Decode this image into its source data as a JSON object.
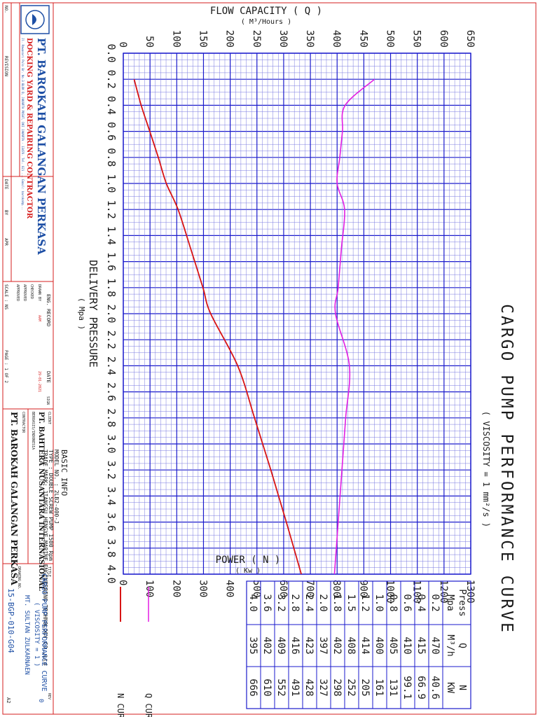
{
  "chart_data": {
    "type": "line",
    "title": "CARGO PUMP PERFORMANCE CURVE",
    "subtitle": "( VISCOSITY = 1 mm²/s )",
    "xlabel": "DELIVERY PRESSURE",
    "xunit": "( Mpa )",
    "x_ticks": [
      "0.0",
      "0.2",
      "0.4",
      "0.6",
      "0.8",
      "1.0",
      "1.2",
      "1.4",
      "1.6",
      "1.8",
      "2.0",
      "2.2",
      "2.4",
      "2.6",
      "2.8",
      "3.0",
      "3.2",
      "3.4",
      "3.6",
      "3.8",
      "4.0"
    ],
    "xlim": [
      0,
      4
    ],
    "y_left_label": "FLOW CAPACITY ( Q )",
    "y_left_unit": "( M³/Hours )",
    "y_left_ticks": [
      "0",
      "50",
      "100",
      "150",
      "200",
      "250",
      "300",
      "350",
      "400",
      "450",
      "500",
      "550",
      "600",
      "650"
    ],
    "y_left_lim": [
      0,
      650
    ],
    "y_right_label": "POWER ( N )",
    "y_right_unit": "( Kw )",
    "y_right_ticks": [
      "0",
      "100",
      "200",
      "300",
      "400",
      "500",
      "600",
      "700",
      "800",
      "900",
      "1000",
      "1100",
      "1200",
      "1300"
    ],
    "y_right_lim": [
      0,
      1300
    ],
    "grid": true,
    "series": [
      {
        "name": "Q CURVE",
        "axis": "left",
        "color": "#e21ee2",
        "x": [
          0.2,
          0.4,
          0.6,
          0.8,
          1.0,
          1.2,
          1.5,
          1.8,
          2.0,
          2.4,
          2.8,
          3.2,
          3.6,
          4.0
        ],
        "y": [
          470,
          415,
          410,
          405,
          400,
          414,
          408,
          402,
          397,
          423,
          416,
          409,
          402,
          395
        ]
      },
      {
        "name": "N CURVE",
        "axis": "right",
        "color": "#d81414",
        "x": [
          0.2,
          0.4,
          0.6,
          0.8,
          1.0,
          1.2,
          1.5,
          1.8,
          2.0,
          2.4,
          2.8,
          3.2,
          3.6,
          4.0
        ],
        "y": [
          40.6,
          66.9,
          99.1,
          131,
          161,
          205,
          252,
          298,
          327,
          428,
          491,
          552,
          610,
          666
        ]
      }
    ],
    "table": {
      "headers": [
        [
          "Press",
          "Mpa"
        ],
        [
          "Q",
          "M³/h"
        ],
        [
          "N",
          "KW"
        ]
      ],
      "rows": [
        [
          "0.2",
          "470",
          "40.6"
        ],
        [
          "0.4",
          "415",
          "66.9"
        ],
        [
          "0.6",
          "410",
          "99.1"
        ],
        [
          "0.8",
          "405",
          "131"
        ],
        [
          "1.0",
          "400",
          "161"
        ],
        [
          "1.2",
          "414",
          "205"
        ],
        [
          "1.5",
          "408",
          "252"
        ],
        [
          "1.8",
          "402",
          "298"
        ],
        [
          "2.0",
          "397",
          "327"
        ],
        [
          "2.4",
          "423",
          "428"
        ],
        [
          "2.8",
          "416",
          "491"
        ],
        [
          "3.2",
          "409",
          "552"
        ],
        [
          "3.6",
          "402",
          "610"
        ],
        [
          "4.0",
          "395",
          "666"
        ]
      ]
    },
    "legend": [
      {
        "label": "Q CURVE",
        "color": "#e21ee2"
      },
      {
        "label": "N CURVE",
        "color": "#d81414"
      }
    ],
    "basic_info": {
      "heading": "BASIC INFO",
      "lines": [
        "MODEL NO. : 2LB2-400-J",
        "TYPE : DOUBLE SCREW PUMP 1500 Rpm",
        "TRADE MARK: JIANGSU HENGYE MARINE ENGINEERING TECHNOLOGY CO.,Ltd"
      ]
    }
  },
  "title_block": {
    "company": "PT. BAROKAH GALANGAN PERKASA",
    "company_sub": "DOCKING YARD & REPAIRING CONTRACTOR",
    "address": "Jl. Rawasari Pulo Br. No.3 BLOK D, JAKARTA PUSAT, DKI JAKARTA - 13470. Tel. 021 ... Email: barokah@...",
    "rev_labels": {
      "no": "NO.",
      "revision": "REVISION",
      "date": "DATE",
      "by": "BY",
      "apr": "APR"
    },
    "eng_record": "ENG. RECORD",
    "date_label": "DATE",
    "sign_label": "SIGN",
    "drawn_by": "DRAWN BY",
    "drawn_by_value": "AAM",
    "checked": "CHECKED",
    "approved": "APPROVED",
    "approved2": "APPROVED",
    "date_value": "29-01-2021",
    "scale": "SCALE : NS",
    "page": "PAGE : 1 OF 2",
    "client_label": "CLIENT",
    "client": "PT. BAHTERA NUSANTARA INTERNASIONAL",
    "client_sub": "BEROASIS/INDONESIA",
    "contractor_label": "CONTRACTOR",
    "contractor": "PT. BAROKAH GALANGAN PERKASA",
    "title_label": "TITLE",
    "drawing_title_1": "CARGO PUMP PERFORMANCE CURVE",
    "drawing_title_2": "( VISCOSITY = 1 )",
    "vessel": "MT. SULTAN ZULKARNAEN",
    "drawing_no_label": "DRAWING NO.",
    "drawing_no": "15-BGP-010-G04",
    "rev_label": "REV",
    "rev_value": "0",
    "sheet_size": "A2"
  }
}
